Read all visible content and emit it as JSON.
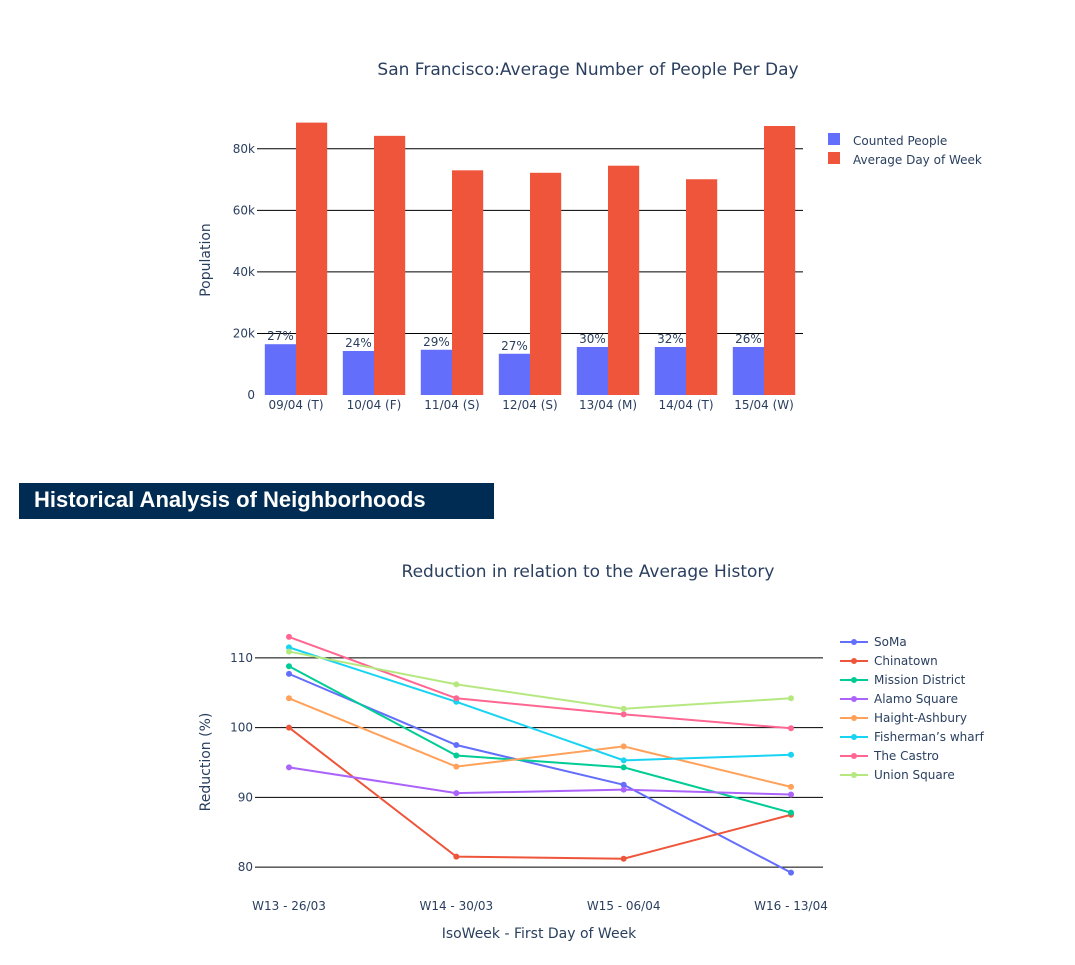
{
  "chart_data": [
    {
      "type": "bar",
      "title": "San Francisco:Average Number of People Per Day",
      "xlabel": "",
      "ylabel": "Population",
      "ylim": [
        0,
        90000
      ],
      "yticks": [
        0,
        20000,
        40000,
        60000,
        80000
      ],
      "ytick_labels": [
        "0",
        "20k",
        "40k",
        "60k",
        "80k"
      ],
      "categories": [
        "09/04 (T)",
        "10/04 (F)",
        "11/04 (S)",
        "12/04 (S)",
        "13/04 (M)",
        "14/04 (T)",
        "15/04 (W)"
      ],
      "legend_position": "top-right",
      "series": [
        {
          "name": "Counted People",
          "color": "#636efa",
          "values": [
            16500,
            14300,
            14700,
            13400,
            15600,
            15600,
            15600
          ],
          "labels": [
            "27%",
            "24%",
            "29%",
            "27%",
            "30%",
            "32%",
            "26%"
          ]
        },
        {
          "name": "Average Day of Week",
          "color": "#ef553b",
          "values": [
            88500,
            84200,
            73000,
            72200,
            74500,
            70100,
            87400
          ]
        }
      ]
    },
    {
      "type": "line",
      "title": "Reduction in relation to the Average History",
      "xlabel": "IsoWeek - First Day of Week",
      "ylabel": "Reduction (%)",
      "ylim": [
        77,
        116
      ],
      "yticks": [
        80,
        90,
        100,
        110
      ],
      "ytick_labels": [
        "80",
        "90",
        "100",
        "110"
      ],
      "x": [
        "W13 - 26/03",
        "W14 - 30/03",
        "W15 - 06/04",
        "W16 - 13/04"
      ],
      "legend_position": "top-right",
      "series": [
        {
          "name": "SoMa",
          "color": "#636efa",
          "values": [
            107.7,
            97.5,
            91.8,
            79.2
          ]
        },
        {
          "name": "Chinatown",
          "color": "#ef553b",
          "values": [
            100.0,
            81.5,
            81.2,
            87.5
          ]
        },
        {
          "name": "Mission District",
          "color": "#00cc96",
          "values": [
            108.8,
            96.0,
            94.3,
            87.8
          ]
        },
        {
          "name": "Alamo Square",
          "color": "#ab63fa",
          "values": [
            94.3,
            90.6,
            91.1,
            90.4
          ]
        },
        {
          "name": "Haight-Ashbury",
          "color": "#ffa15a",
          "values": [
            104.2,
            94.4,
            97.3,
            91.5
          ]
        },
        {
          "name": "Fisherman’s wharf",
          "color": "#19d3f3",
          "values": [
            111.5,
            103.7,
            95.3,
            96.1
          ]
        },
        {
          "name": "The Castro",
          "color": "#ff6692",
          "values": [
            113.0,
            104.2,
            101.9,
            99.9
          ]
        },
        {
          "name": "Union Square",
          "color": "#b6e880",
          "values": [
            110.9,
            106.2,
            102.7,
            104.2
          ]
        }
      ]
    }
  ],
  "section": {
    "title": "Historical Analysis of Neighborhoods"
  }
}
